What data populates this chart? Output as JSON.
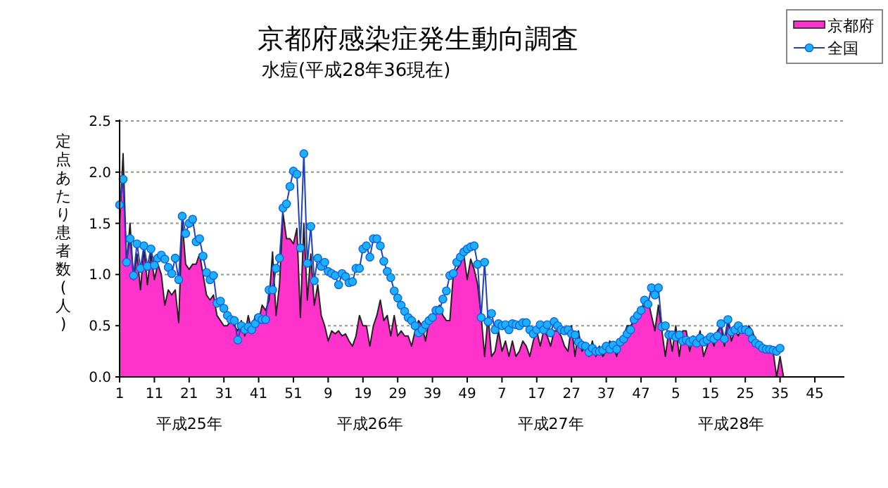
{
  "chart_data": {
    "type": "area",
    "title": "京都府感染症発生動向調査",
    "subtitle": "水痘(平成28年36現在)",
    "ylabel": "定点あたり患者数(人)",
    "categories": [
      "1",
      null,
      null,
      null,
      null,
      null,
      null,
      null,
      null,
      null,
      "11",
      null,
      null,
      null,
      null,
      null,
      null,
      null,
      null,
      null,
      "21",
      null,
      null,
      null,
      null,
      null,
      null,
      null,
      null,
      null,
      "31",
      null,
      null,
      null,
      null,
      null,
      null,
      null,
      null,
      null,
      "41",
      null,
      null,
      null,
      null,
      null,
      null,
      null,
      null,
      null,
      "51",
      null,
      null,
      null,
      null,
      null,
      null,
      null,
      null,
      null,
      "9",
      null,
      null,
      null,
      null,
      null,
      null,
      null,
      null,
      null,
      "19",
      null,
      null,
      null,
      null,
      null,
      null,
      null,
      null,
      null,
      "29",
      null,
      null,
      null,
      null,
      null,
      null,
      null,
      null,
      null,
      "39",
      null,
      null,
      null,
      null,
      null,
      null,
      null,
      null,
      null,
      "49",
      null,
      null,
      null,
      null,
      null,
      null,
      null,
      null,
      null,
      "7",
      null,
      null,
      null,
      null,
      null,
      null,
      null,
      null,
      null,
      "17",
      null,
      null,
      null,
      null,
      null,
      null,
      null,
      null,
      null,
      "27",
      null,
      null,
      null,
      null,
      null,
      null,
      null,
      null,
      null,
      "37",
      null,
      null,
      null,
      null,
      null,
      null,
      null,
      null,
      null,
      "47",
      null,
      null,
      null,
      null,
      null,
      null,
      null,
      null,
      null,
      "5",
      null,
      null,
      null,
      null,
      null,
      null,
      null,
      null,
      null,
      "15",
      null,
      null,
      null,
      null,
      null,
      null,
      null,
      null,
      null,
      "25",
      null,
      null,
      null,
      null,
      null,
      null,
      null,
      null,
      null,
      "35",
      null,
      null,
      null,
      null,
      null,
      null,
      null,
      null,
      null,
      "45",
      null,
      null,
      null,
      null,
      null,
      null,
      null
    ],
    "series": [
      {
        "name": "京都府",
        "color": "#ff33cc",
        "values": [
          1.5,
          2.18,
          1.1,
          1.5,
          0.95,
          1.2,
          0.85,
          1.25,
          0.9,
          1.2,
          0.95,
          1.1,
          1.0,
          0.7,
          0.85,
          0.8,
          0.85,
          0.53,
          1.53,
          1.1,
          1.05,
          1.1,
          1.1,
          1.2,
          1.0,
          0.8,
          0.75,
          0.8,
          0.6,
          0.55,
          0.5,
          0.5,
          0.55,
          0.5,
          0.45,
          0.55,
          0.4,
          0.6,
          0.45,
          0.6,
          0.55,
          0.7,
          0.65,
          0.75,
          1.22,
          0.6,
          0.9,
          1.6,
          1.35,
          1.35,
          1.3,
          1.45,
          0.58,
          1.5,
          0.75,
          1.2,
          0.7,
          0.9,
          0.6,
          0.5,
          0.35,
          0.45,
          0.42,
          0.45,
          0.4,
          0.42,
          0.35,
          0.3,
          0.4,
          0.6,
          0.5,
          0.5,
          0.3,
          0.5,
          0.6,
          0.75,
          0.55,
          0.6,
          0.4,
          0.6,
          0.4,
          0.45,
          0.4,
          0.4,
          0.3,
          0.45,
          0.55,
          0.5,
          0.35,
          0.55,
          0.6,
          0.65,
          0.7,
          0.6,
          0.55,
          0.55,
          1.0,
          1.05,
          1.1,
          1.2,
          0.95,
          1.15,
          1.05,
          0.9,
          0.6,
          0.2,
          0.6,
          0.2,
          0.25,
          0.45,
          0.25,
          0.35,
          0.2,
          0.35,
          0.2,
          0.25,
          0.35,
          0.3,
          0.2,
          0.35,
          0.45,
          0.3,
          0.45,
          0.4,
          0.3,
          0.45,
          0.45,
          0.4,
          0.3,
          0.25,
          0.5,
          0.2,
          0.45,
          0.25,
          0.3,
          0.2,
          0.35,
          0.2,
          0.3,
          0.2,
          0.25,
          0.35,
          0.3,
          0.2,
          0.35,
          0.4,
          0.5,
          0.5,
          0.55,
          0.6,
          0.65,
          0.7,
          0.75,
          0.6,
          0.45,
          0.7,
          0.45,
          0.2,
          0.45,
          0.25,
          0.5,
          0.2,
          0.45,
          0.45,
          0.25,
          0.4,
          0.3,
          0.45,
          0.2,
          0.3,
          0.4,
          0.3,
          0.45,
          0.5,
          0.3,
          0.55,
          0.35,
          0.45,
          0.4,
          0.5,
          0.45,
          0.5,
          0.45,
          0.35,
          0.3,
          0.25,
          0.25,
          0.25,
          0.25,
          0.0,
          0.2,
          0.0,
          null,
          null,
          null,
          null,
          null,
          null,
          null,
          null,
          null,
          null,
          null,
          null,
          null,
          null,
          null,
          null
        ]
      },
      {
        "name": "全国",
        "type": "line",
        "color": "#1ab2ff",
        "marker": "circle",
        "values": [
          1.68,
          1.93,
          1.12,
          1.35,
          0.99,
          1.3,
          1.06,
          1.28,
          1.08,
          1.25,
          1.09,
          1.16,
          1.19,
          1.15,
          1.07,
          1.01,
          1.16,
          0.95,
          1.57,
          1.4,
          1.5,
          1.54,
          1.32,
          1.35,
          1.18,
          1.02,
          0.95,
          0.99,
          0.72,
          0.74,
          0.67,
          0.6,
          0.56,
          0.55,
          0.36,
          0.5,
          0.46,
          0.49,
          0.46,
          0.52,
          0.58,
          0.56,
          0.56,
          0.85,
          0.85,
          1.06,
          1.16,
          1.65,
          1.69,
          1.86,
          2.01,
          1.98,
          1.26,
          2.18,
          1.11,
          1.47,
          0.94,
          1.16,
          1.08,
          1.12,
          1.03,
          1.01,
          0.99,
          0.9,
          1.01,
          0.98,
          0.92,
          0.93,
          1.06,
          1.06,
          1.25,
          1.28,
          1.17,
          1.35,
          1.35,
          1.28,
          1.13,
          1.03,
          0.97,
          0.84,
          0.77,
          0.7,
          0.64,
          0.58,
          0.55,
          0.5,
          0.43,
          0.46,
          0.51,
          0.55,
          0.58,
          0.65,
          0.65,
          0.76,
          0.84,
          0.99,
          1.01,
          1.12,
          1.17,
          1.22,
          1.25,
          1.27,
          1.28,
          1.1,
          0.58,
          1.12,
          0.54,
          0.62,
          0.46,
          0.52,
          0.5,
          0.51,
          0.46,
          0.52,
          0.51,
          0.5,
          0.53,
          0.53,
          0.46,
          0.42,
          0.46,
          0.51,
          0.46,
          0.51,
          0.43,
          0.54,
          0.5,
          0.46,
          0.45,
          0.46,
          0.42,
          0.41,
          0.34,
          0.31,
          0.3,
          0.24,
          0.28,
          0.25,
          0.25,
          0.26,
          0.3,
          0.27,
          0.31,
          0.27,
          0.34,
          0.37,
          0.42,
          0.46,
          0.56,
          0.6,
          0.65,
          0.75,
          0.71,
          0.87,
          0.8,
          0.87,
          0.49,
          0.5,
          0.41,
          0.41,
          0.39,
          0.41,
          0.35,
          0.36,
          0.34,
          0.36,
          0.33,
          0.38,
          0.34,
          0.36,
          0.39,
          0.37,
          0.4,
          0.52,
          0.37,
          0.56,
          0.44,
          0.46,
          0.5,
          0.46,
          0.46,
          0.44,
          0.37,
          0.33,
          0.31,
          0.28,
          0.27,
          0.27,
          0.26,
          0.25,
          0.28,
          null,
          null,
          null,
          null,
          null,
          null,
          null,
          null,
          null,
          null,
          null,
          null,
          null,
          null,
          null,
          null,
          null
        ]
      }
    ],
    "ylim": [
      0,
      2.5
    ],
    "yticks": [
      {
        "value": 0,
        "label": "0.0"
      },
      {
        "value": 0.5,
        "label": "0.5"
      },
      {
        "value": 1,
        "label": "1.0"
      },
      {
        "value": 1.5,
        "label": "1.5"
      },
      {
        "value": 2,
        "label": "2.0"
      },
      {
        "value": 2.5,
        "label": "2.5"
      }
    ],
    "grid": "y",
    "legend": "top right",
    "annotations": [
      "平成25年",
      "平成26年",
      "平成27年",
      "平成28年"
    ]
  }
}
